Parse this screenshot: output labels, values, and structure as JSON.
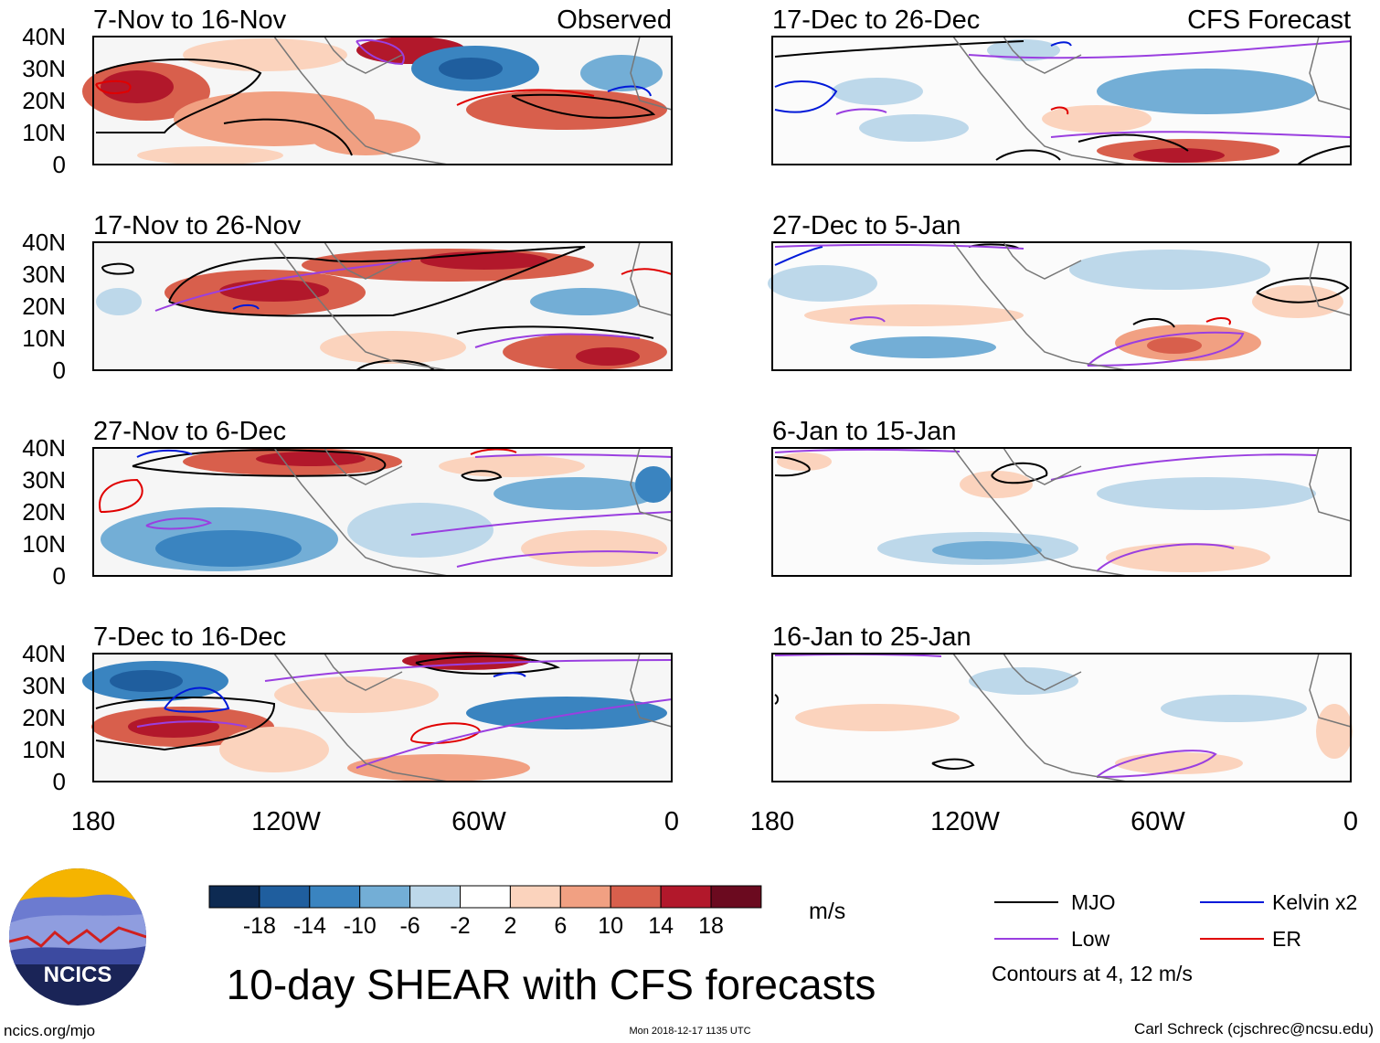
{
  "figure_title": "10-day SHEAR with CFS forecasts",
  "observed_label": "Observed",
  "forecast_label": "CFS Forecast",
  "lat_labels": [
    "40N",
    "30N",
    "20N",
    "10N",
    "0"
  ],
  "lon_labels": [
    "180",
    "120W",
    "60W",
    "0"
  ],
  "panels": [
    {
      "period": "7-Nov to 16-Nov",
      "kind": "observed"
    },
    {
      "period": "17-Nov to 26-Nov",
      "kind": "observed"
    },
    {
      "period": "27-Nov to 6-Dec",
      "kind": "observed"
    },
    {
      "period": "7-Dec to 16-Dec",
      "kind": "observed"
    },
    {
      "period": "17-Dec to 26-Dec",
      "kind": "forecast"
    },
    {
      "period": "27-Dec to 5-Jan",
      "kind": "forecast"
    },
    {
      "period": "6-Jan to 15-Jan",
      "kind": "forecast"
    },
    {
      "period": "16-Jan to 25-Jan",
      "kind": "forecast"
    }
  ],
  "colorbar": {
    "unit": "m/s",
    "tick_labels": [
      "-18",
      "-14",
      "-10",
      "-6",
      "-2",
      "2",
      "6",
      "10",
      "14",
      "18"
    ],
    "colors": [
      "#0d2a52",
      "#1f5e9e",
      "#3a84c0",
      "#73aed6",
      "#bdd8ea",
      "#ffffff",
      "#fbd3bd",
      "#f1a082",
      "#d85f4c",
      "#b2182b",
      "#6b0a1f"
    ]
  },
  "legend": {
    "items": [
      {
        "label": "MJO",
        "color": "#000000"
      },
      {
        "label": "Kelvin x2",
        "color": "#0019d9"
      },
      {
        "label": "Low",
        "color": "#9a3fe0"
      },
      {
        "label": "ER",
        "color": "#e00000"
      }
    ],
    "note": "Contours at 4, 12 m/s"
  },
  "logo_text": "NCICS",
  "footer": {
    "left": "ncics.org/mjo",
    "center": "Mon 2018-12-17 1135 UTC",
    "right": "Carl Schreck (cjschrec@ncsu.edu)"
  }
}
